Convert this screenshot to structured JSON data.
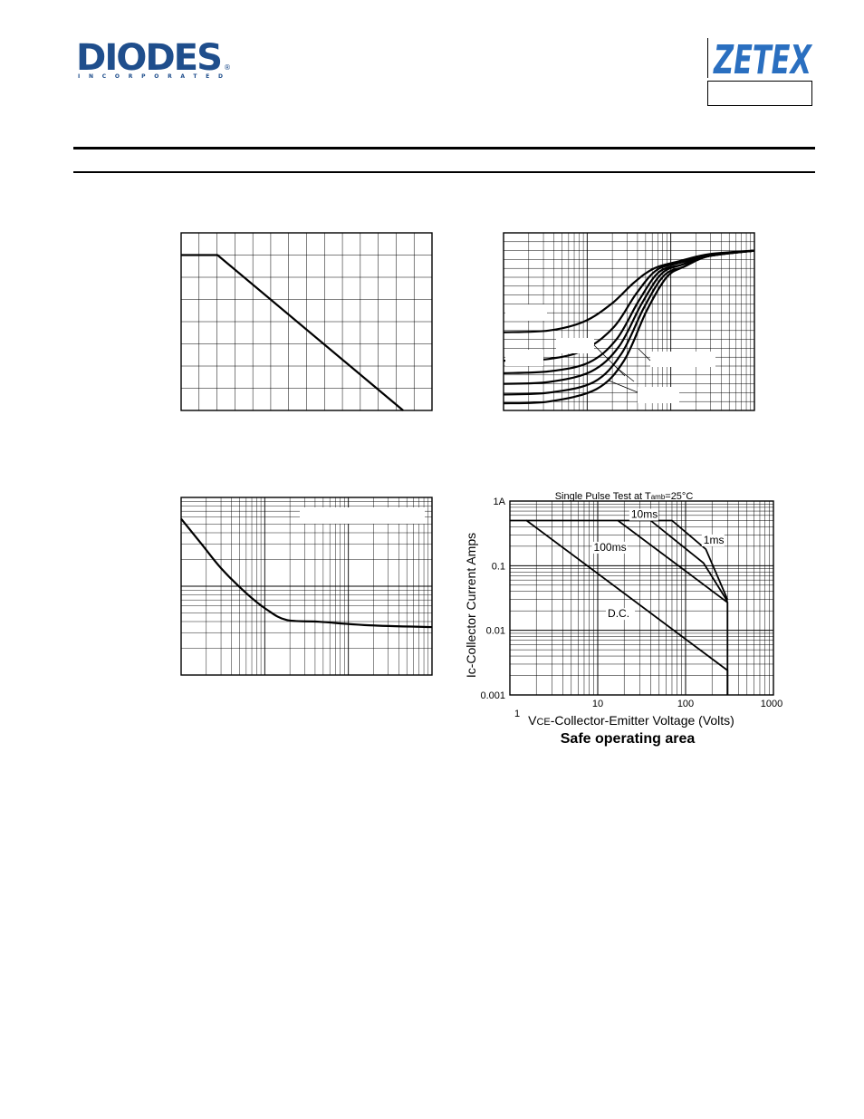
{
  "header": {
    "diodes_logo": {
      "word": "DIODES",
      "sub": "INCORPORATED",
      "mark": "®",
      "color": "#1f4e8c"
    },
    "zetex_logo": {
      "word": "ZETEX",
      "color": "#2a6fc0"
    },
    "part_box_text": ""
  },
  "chart_data": [
    {
      "type": "line",
      "name_hint": "derating-chart",
      "x_range": [
        0,
        1
      ],
      "y_range": [
        0,
        1
      ],
      "series": [
        {
          "x": [
            0.0,
            0.145,
            0.885
          ],
          "y": [
            0.875,
            0.875,
            0.0
          ]
        }
      ]
    },
    {
      "type": "line",
      "name_hint": "family-curves-chart",
      "x_scale": "log",
      "x_range": [
        0,
        1
      ],
      "y_range": [
        0,
        1
      ],
      "series": [
        {
          "x": [
            0.0,
            0.18,
            0.32,
            0.43,
            0.52,
            0.6,
            0.7,
            0.82,
            1.0
          ],
          "y": [
            0.44,
            0.45,
            0.5,
            0.6,
            0.72,
            0.8,
            0.84,
            0.88,
            0.9
          ]
        },
        {
          "x": [
            0.0,
            0.18,
            0.32,
            0.44,
            0.53,
            0.61,
            0.7,
            0.82,
            1.0
          ],
          "y": [
            0.28,
            0.29,
            0.34,
            0.47,
            0.66,
            0.79,
            0.83,
            0.87,
            0.9
          ]
        },
        {
          "x": [
            0.0,
            0.18,
            0.34,
            0.45,
            0.54,
            0.62,
            0.71,
            0.82,
            1.0
          ],
          "y": [
            0.21,
            0.22,
            0.27,
            0.4,
            0.62,
            0.78,
            0.82,
            0.87,
            0.9
          ]
        },
        {
          "x": [
            0.0,
            0.18,
            0.35,
            0.46,
            0.55,
            0.63,
            0.71,
            0.82,
            1.0
          ],
          "y": [
            0.15,
            0.16,
            0.22,
            0.36,
            0.6,
            0.77,
            0.82,
            0.87,
            0.9
          ]
        },
        {
          "x": [
            0.0,
            0.18,
            0.36,
            0.47,
            0.56,
            0.64,
            0.72,
            0.82,
            1.0
          ],
          "y": [
            0.09,
            0.1,
            0.16,
            0.32,
            0.58,
            0.76,
            0.81,
            0.87,
            0.9
          ]
        },
        {
          "x": [
            0.0,
            0.18,
            0.37,
            0.48,
            0.57,
            0.65,
            0.72,
            0.82,
            1.0
          ],
          "y": [
            0.04,
            0.05,
            0.12,
            0.28,
            0.56,
            0.75,
            0.81,
            0.87,
            0.9
          ]
        }
      ]
    },
    {
      "type": "line",
      "name_hint": "log-decay-chart",
      "x_scale": "log",
      "x_range": [
        0,
        1
      ],
      "y_range": [
        0,
        1
      ],
      "series": [
        {
          "x": [
            0.0,
            0.08,
            0.16,
            0.26,
            0.34,
            0.42,
            0.55,
            0.75,
            1.0
          ],
          "y": [
            0.88,
            0.74,
            0.6,
            0.46,
            0.37,
            0.31,
            0.3,
            0.28,
            0.27
          ]
        }
      ]
    },
    {
      "type": "line",
      "title": "Single Pulse Test at Tamb=25°C",
      "title_main": "Single Pulse Test at T",
      "title_sub": "amb",
      "title_tail": "=25°C",
      "caption": "Safe operating area",
      "xlabel_prefix": "V",
      "xlabel_sub": "CE",
      "xlabel_rest": "-Collector-Emitter Voltage (Volts)",
      "ylabel": "Ic-Collector Current Amps",
      "x_scale": "log",
      "y_scale": "log",
      "x_range": [
        1,
        1000
      ],
      "y_range": [
        0.001,
        1
      ],
      "x_ticks": [
        {
          "value": 1,
          "label": "1"
        },
        {
          "value": 10,
          "label": "10"
        },
        {
          "value": 100,
          "label": "100"
        },
        {
          "value": 1000,
          "label": "1000"
        }
      ],
      "y_ticks": [
        {
          "value": 1,
          "label": "1A"
        },
        {
          "value": 0.1,
          "label": "0.1"
        },
        {
          "value": 0.01,
          "label": "0.01"
        },
        {
          "value": 0.001,
          "label": "0.001"
        }
      ],
      "series": [
        {
          "name": "D.C.",
          "x": [
            1.0,
            1.55,
            300,
            300
          ],
          "y": [
            0.5,
            0.5,
            0.0024,
            0.001
          ]
        },
        {
          "name": "100ms",
          "x": [
            1.55,
            17,
            300,
            300
          ],
          "y": [
            0.5,
            0.5,
            0.027,
            0.001
          ]
        },
        {
          "name": "10ms",
          "x": [
            17,
            40,
            160,
            300
          ],
          "y": [
            0.5,
            0.5,
            0.11,
            0.028
          ]
        },
        {
          "name": "1ms",
          "x": [
            40,
            70,
            170,
            300
          ],
          "y": [
            0.5,
            0.5,
            0.18,
            0.03
          ]
        }
      ],
      "annotations": [
        {
          "text": "10ms",
          "x": 24,
          "y": 0.55
        },
        {
          "text": "1ms",
          "x": 160,
          "y": 0.22
        },
        {
          "text": "100ms",
          "x": 9,
          "y": 0.17
        },
        {
          "text": "D.C.",
          "x": 13,
          "y": 0.016
        }
      ]
    }
  ]
}
